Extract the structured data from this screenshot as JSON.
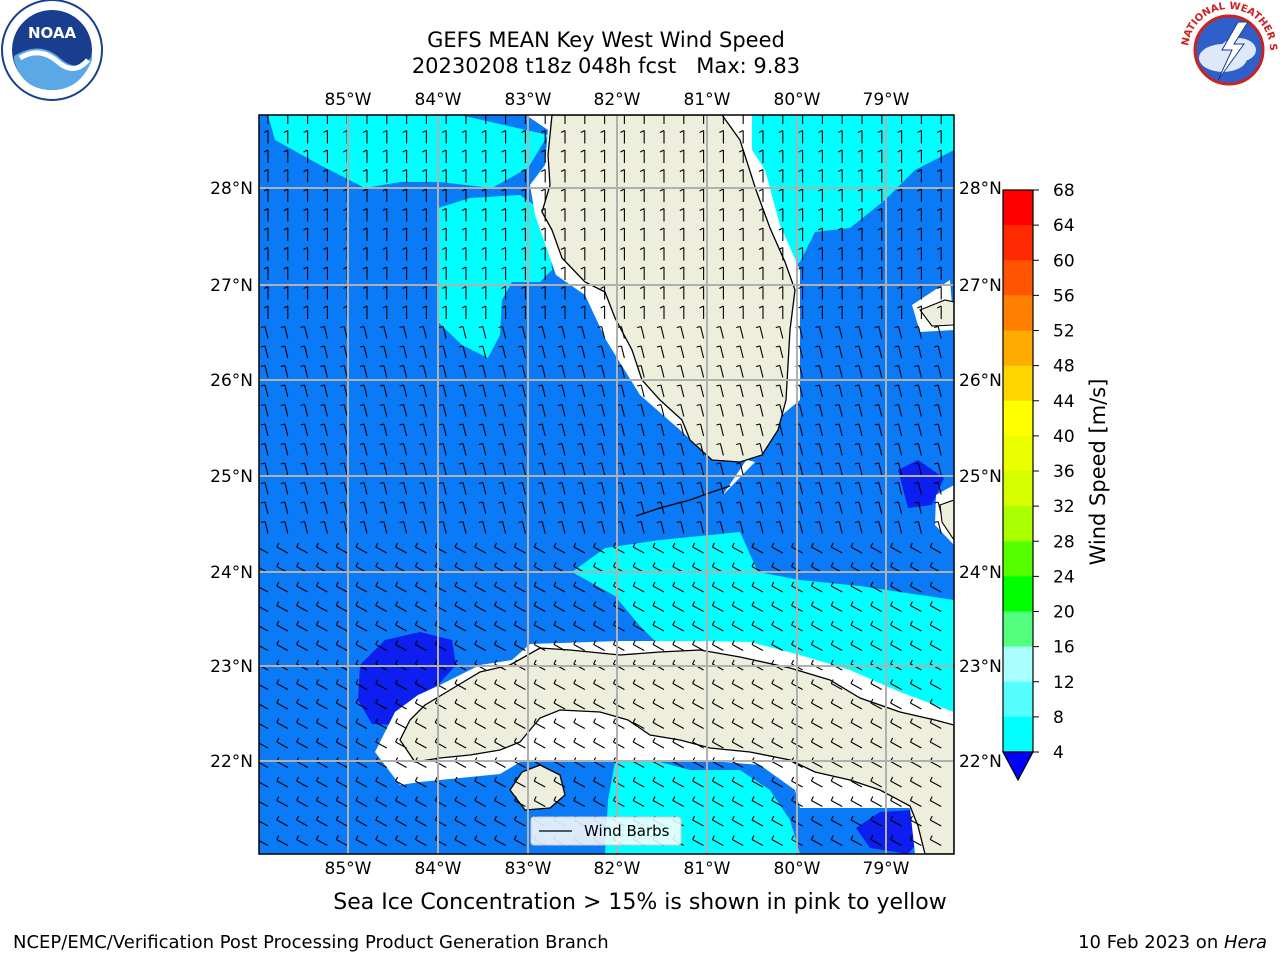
{
  "header": {
    "title_line1": "GEFS MEAN Key West Wind Speed",
    "title_line2": "20230208 t18z 048h fcst   Max: 9.83"
  },
  "logos": {
    "left": "NOAA",
    "right": "NATIONAL WEATHER SERVICE"
  },
  "map": {
    "lon_labels": [
      "85°W",
      "84°W",
      "83°W",
      "82°W",
      "81°W",
      "80°W",
      "79°W"
    ],
    "lat_labels": [
      "28°N",
      "27°N",
      "26°N",
      "25°N",
      "24°N",
      "23°N",
      "22°N"
    ],
    "legend_label": "Wind Barbs",
    "colors": {
      "land": "#eeeedd",
      "wind_4_8": "#0a7af7",
      "wind_8_12": "#00ffff",
      "wind_lt_4": "#0d1ff0",
      "gridline": "#b0b0b0"
    }
  },
  "colorbar": {
    "label": "Wind Speed [m/s]",
    "ticks": [
      "68",
      "64",
      "60",
      "56",
      "52",
      "48",
      "44",
      "40",
      "36",
      "32",
      "28",
      "24",
      "20",
      "16",
      "12",
      "8",
      "4"
    ],
    "colors": [
      "#ff0000",
      "#ff2a00",
      "#ff5500",
      "#ff8000",
      "#ffab00",
      "#ffd500",
      "#ffff00",
      "#eaff00",
      "#d5ff00",
      "#aaff00",
      "#55ff00",
      "#00ff00",
      "#55ff80",
      "#aaffff",
      "#55ffff",
      "#00ffff",
      "#0080ff"
    ],
    "below_color": "#0000ff"
  },
  "footer": {
    "note": "Sea Ice Concentration > 15% is shown in pink to yellow",
    "left": "NCEP/EMC/Verification Post Processing Product Generation Branch",
    "right_date": "10 Feb 2023 on ",
    "right_host": "Hera"
  }
}
